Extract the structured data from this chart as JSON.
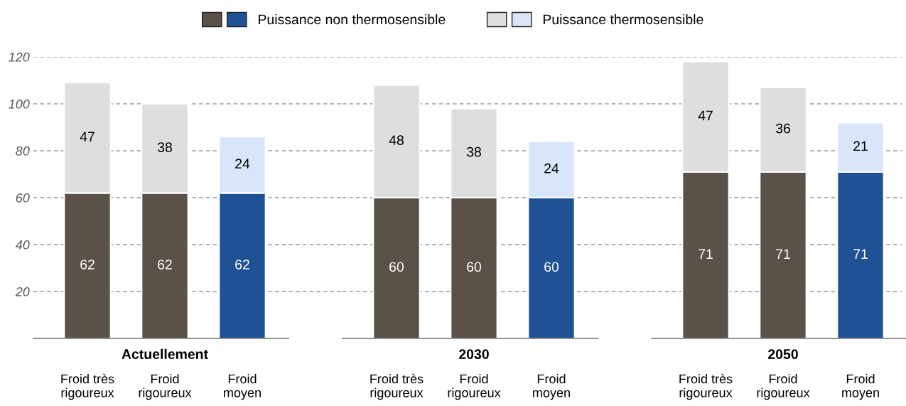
{
  "chart_data": [
    {
      "type": "bar",
      "stacked": true,
      "xlabel": "Actuellement",
      "categories": [
        "Froid très\nrigoureux",
        "Froid\nrigoureux",
        "Froid\nmoyen"
      ],
      "series": [
        {
          "name": "Puissance non thermosensible",
          "colors": [
            "#5a5148",
            "#5a5148",
            "#1f5195"
          ],
          "values": [
            62,
            62,
            62
          ]
        },
        {
          "name": "Puissance thermosensible",
          "colors": [
            "#dedede",
            "#dedede",
            "#d9e5fb"
          ],
          "values": [
            47,
            38,
            24
          ]
        }
      ],
      "ylim": [
        0,
        120
      ],
      "yticks": [
        20,
        40,
        60,
        80,
        100,
        120
      ],
      "grid": "y",
      "line_style": "dashed",
      "legend": "top",
      "data_labels": true
    },
    {
      "type": "bar",
      "stacked": true,
      "xlabel": "2030",
      "categories": [
        "Froid très\nrigoureux",
        "Froid\nrigoureux",
        "Froid\nmoyen"
      ],
      "series": [
        {
          "colors": [
            "#5a5148",
            "#5a5148",
            "#1f5195"
          ],
          "values": [
            60,
            60,
            60
          ]
        },
        {
          "colors": [
            "#dedede",
            "#dedede",
            "#d9e5fb"
          ],
          "values": [
            48,
            38,
            24
          ]
        }
      ],
      "ylim": [
        0,
        120
      ],
      "yticks": [
        20,
        40,
        60,
        80,
        100,
        120
      ],
      "grid": "y",
      "line_style": "dashed",
      "tick_labels": "x",
      "data_labels": true
    },
    {
      "type": "bar",
      "stacked": true,
      "xlabel": "2050",
      "categories": [
        "Froid très\nrigoureux",
        "Froid\nrigoureux",
        "Froid\nmoyen"
      ],
      "series": [
        {
          "colors": [
            "#5a5148",
            "#5a5148",
            "#1f5195"
          ],
          "values": [
            71,
            71,
            71
          ]
        },
        {
          "colors": [
            "#dedede",
            "#dedede",
            "#d9e5fb"
          ],
          "values": [
            47,
            36,
            21
          ]
        }
      ],
      "ylim": [
        0,
        120
      ],
      "yticks": [
        20,
        40,
        60,
        80,
        100,
        120
      ],
      "grid": "y",
      "line_style": "dashed",
      "tick_labels": "x",
      "data_labels": true
    }
  ]
}
